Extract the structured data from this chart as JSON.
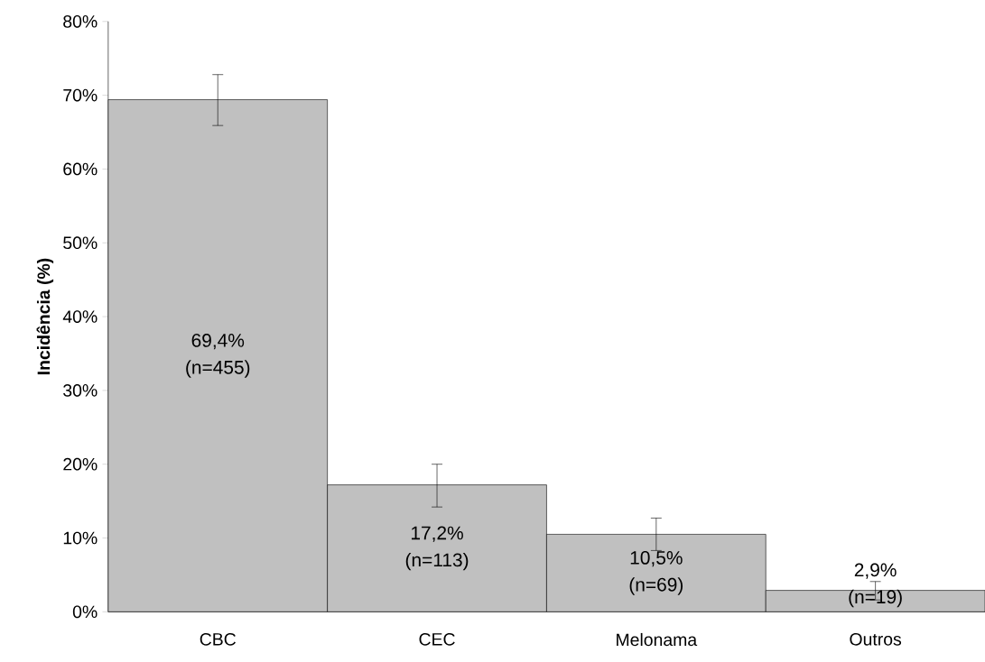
{
  "chart_data": {
    "type": "bar",
    "ylabel": "Incidência (%)",
    "categories": [
      "CBC",
      "CEC",
      "Melonama",
      "Outros"
    ],
    "values": [
      69.4,
      17.2,
      10.5,
      2.9
    ],
    "errors": [
      [
        65.9,
        72.8
      ],
      [
        14.2,
        20.0
      ],
      [
        8.3,
        12.7
      ],
      [
        1.6,
        4.1
      ]
    ],
    "value_labels": [
      "69,4% (n=455)",
      "17,2% (n=113)",
      "10,5% (n=69)",
      "2,9% (n=19)"
    ],
    "color": "#c0c0c0",
    "ylim": [
      0,
      80
    ],
    "yticks": [
      {
        "value": 0,
        "label": "0%"
      },
      {
        "value": 10,
        "label": "10%"
      },
      {
        "value": 20,
        "label": "20%"
      },
      {
        "value": 30,
        "label": "30%"
      },
      {
        "value": 40,
        "label": "40%"
      },
      {
        "value": 50,
        "label": "50%"
      },
      {
        "value": 60,
        "label": "60%"
      },
      {
        "value": 70,
        "label": "70%"
      },
      {
        "value": 80,
        "label": "80%"
      }
    ],
    "grid": false
  }
}
